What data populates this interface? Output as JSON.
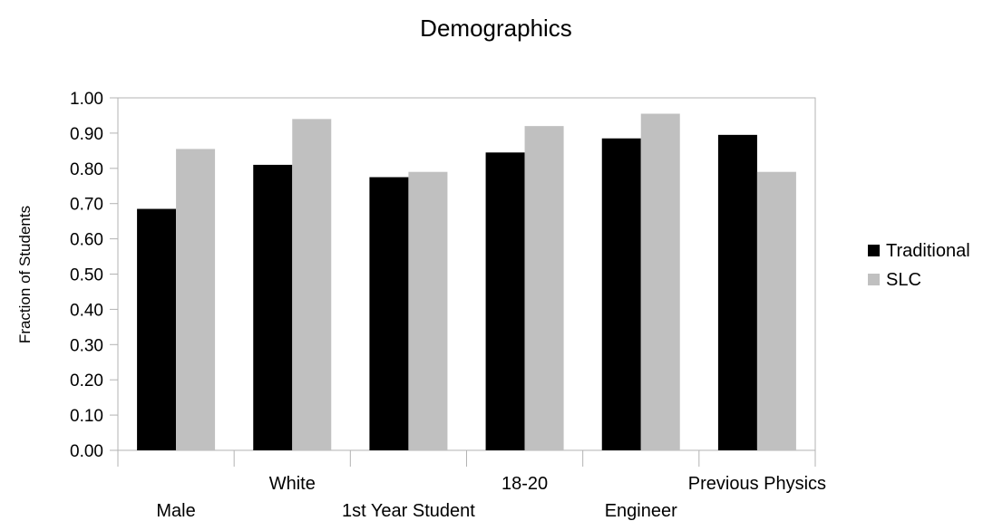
{
  "chart_data": {
    "type": "bar",
    "title": "Demographics",
    "xlabel": "",
    "ylabel": "Fraction of Students",
    "ylim": [
      0,
      1
    ],
    "y_ticks": [
      "0.00",
      "0.10",
      "0.20",
      "0.30",
      "0.40",
      "0.50",
      "0.60",
      "0.70",
      "0.80",
      "0.90",
      "1.00"
    ],
    "categories": [
      "Male",
      "White",
      "1st Year Student",
      "18-20",
      "Engineer",
      "Previous Physics"
    ],
    "series": [
      {
        "name": "Traditional",
        "color": "#000000",
        "values": [
          0.685,
          0.81,
          0.775,
          0.845,
          0.885,
          0.895
        ]
      },
      {
        "name": "SLC",
        "color": "#c0c0c0",
        "values": [
          0.855,
          0.94,
          0.79,
          0.92,
          0.955,
          0.79
        ]
      }
    ],
    "grid": false,
    "legend_position": "right"
  }
}
